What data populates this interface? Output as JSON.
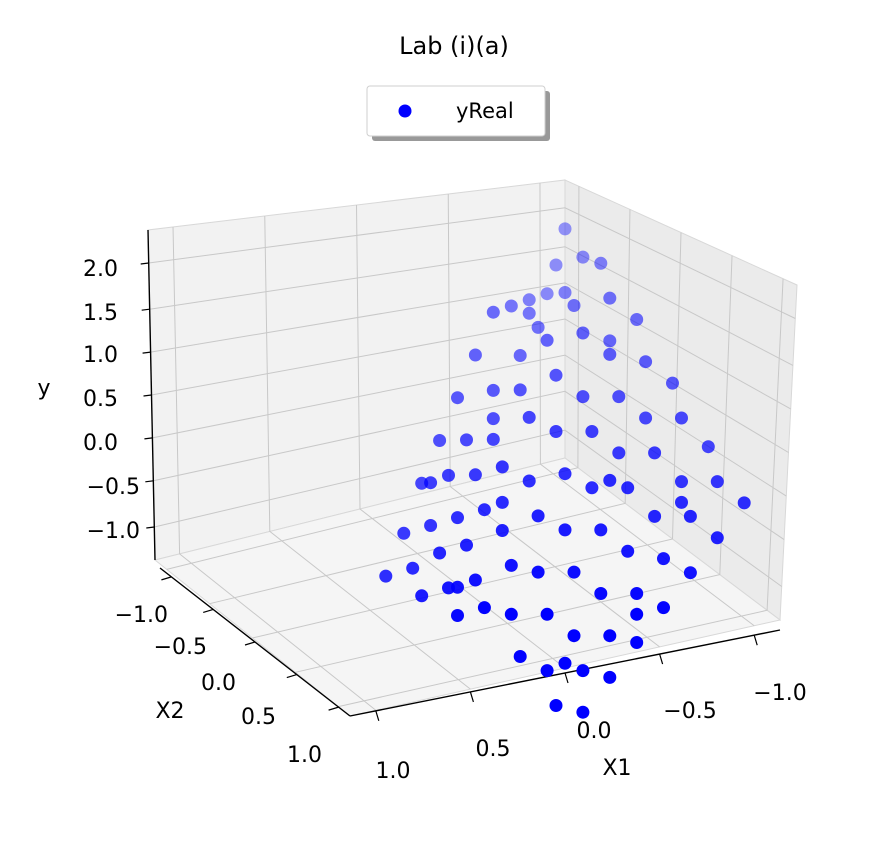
{
  "chart_data": {
    "type": "scatter",
    "title": "Lab (i)(a)",
    "xlabel": "X1",
    "ylabel": "X2",
    "zlabel": "y",
    "legend": {
      "placement": "top-center",
      "entries": [
        "yReal"
      ]
    },
    "x_ticks": [
      "1.0",
      "0.5",
      "0.0",
      "−0.5",
      "−1.0"
    ],
    "y_ticks": [
      "−1.0",
      "−0.5",
      "0.0",
      "0.5",
      "1.0"
    ],
    "z_ticks": [
      "2.0",
      "1.5",
      "1.0",
      "0.5",
      "0.0",
      "−0.5",
      "−1.0"
    ],
    "xlim": [
      -1.2,
      1.2
    ],
    "ylim": [
      -1.2,
      1.2
    ],
    "zlim": [
      -1.5,
      2.3
    ],
    "grid": true,
    "view": {
      "elev": 20,
      "azim": 60
    },
    "series": [
      {
        "name": "yReal",
        "color": "#0000ff",
        "points": [
          {
            "x": -1.0,
            "y": -1.0,
            "z": 2.0
          },
          {
            "x": -0.9,
            "y": -1.0,
            "z": 1.6
          },
          {
            "x": -0.8,
            "y": -1.0,
            "z": 1.3
          },
          {
            "x": -0.6,
            "y": -1.0,
            "z": 1.4
          },
          {
            "x": -0.4,
            "y": -1.0,
            "z": 1.5
          },
          {
            "x": -0.2,
            "y": -1.0,
            "z": 1.6
          },
          {
            "x": 0.0,
            "y": -1.0,
            "z": 1.2
          },
          {
            "x": 0.2,
            "y": -1.0,
            "z": 0.8
          },
          {
            "x": 0.4,
            "y": -1.0,
            "z": 0.4
          },
          {
            "x": 0.6,
            "y": -1.0,
            "z": 0.0
          },
          {
            "x": 0.8,
            "y": -1.0,
            "z": -0.5
          },
          {
            "x": 1.0,
            "y": -1.0,
            "z": -0.9
          },
          {
            "x": -1.0,
            "y": -0.8,
            "z": 1.8
          },
          {
            "x": -0.8,
            "y": -0.8,
            "z": 1.5
          },
          {
            "x": -0.5,
            "y": -0.8,
            "z": 1.3
          },
          {
            "x": -0.3,
            "y": -0.8,
            "z": 1.1
          },
          {
            "x": 0.0,
            "y": -0.8,
            "z": 0.9
          },
          {
            "x": 0.3,
            "y": -0.8,
            "z": 0.5
          },
          {
            "x": 0.5,
            "y": -0.8,
            "z": 0.2
          },
          {
            "x": 0.7,
            "y": -0.8,
            "z": -0.3
          },
          {
            "x": 0.9,
            "y": -0.8,
            "z": -0.7
          },
          {
            "x": -1.0,
            "y": -0.6,
            "z": 1.9
          },
          {
            "x": -0.7,
            "y": -0.6,
            "z": 1.6
          },
          {
            "x": -0.4,
            "y": -0.6,
            "z": 1.4
          },
          {
            "x": -0.1,
            "y": -0.6,
            "z": 1.0
          },
          {
            "x": 0.2,
            "y": -0.6,
            "z": 0.6
          },
          {
            "x": 0.4,
            "y": -0.6,
            "z": 0.3
          },
          {
            "x": 0.6,
            "y": -0.6,
            "z": -0.1
          },
          {
            "x": 0.8,
            "y": -0.6,
            "z": -0.4
          },
          {
            "x": 1.0,
            "y": -0.6,
            "z": -0.8
          },
          {
            "x": -0.9,
            "y": -0.4,
            "z": 1.7
          },
          {
            "x": -0.6,
            "y": -0.4,
            "z": 1.5
          },
          {
            "x": -0.3,
            "y": -0.4,
            "z": 1.2
          },
          {
            "x": 0.0,
            "y": -0.4,
            "z": 0.9
          },
          {
            "x": 0.3,
            "y": -0.4,
            "z": 0.5
          },
          {
            "x": 0.5,
            "y": -0.4,
            "z": 0.1
          },
          {
            "x": 0.7,
            "y": -0.4,
            "z": -0.2
          },
          {
            "x": 0.9,
            "y": -0.4,
            "z": -0.6
          },
          {
            "x": -1.0,
            "y": -0.2,
            "z": 1.5
          },
          {
            "x": -0.7,
            "y": -0.2,
            "z": 1.3
          },
          {
            "x": -0.4,
            "y": -0.2,
            "z": 1.0
          },
          {
            "x": -0.1,
            "y": -0.2,
            "z": 0.8
          },
          {
            "x": 0.2,
            "y": -0.2,
            "z": 0.4
          },
          {
            "x": 0.5,
            "y": -0.2,
            "z": 0.0
          },
          {
            "x": 0.8,
            "y": -0.2,
            "z": -0.4
          },
          {
            "x": 1.0,
            "y": -0.2,
            "z": -0.7
          },
          {
            "x": -0.9,
            "y": 0.0,
            "z": 1.2
          },
          {
            "x": -0.6,
            "y": 0.0,
            "z": 1.0
          },
          {
            "x": -0.3,
            "y": 0.0,
            "z": 0.8
          },
          {
            "x": 0.0,
            "y": 0.0,
            "z": 0.5
          },
          {
            "x": 0.3,
            "y": 0.0,
            "z": 0.2
          },
          {
            "x": 0.6,
            "y": 0.0,
            "z": -0.2
          },
          {
            "x": 0.9,
            "y": 0.0,
            "z": -0.5
          },
          {
            "x": -1.0,
            "y": 0.2,
            "z": 1.0
          },
          {
            "x": -0.7,
            "y": 0.2,
            "z": 0.8
          },
          {
            "x": -0.4,
            "y": 0.2,
            "z": 0.6
          },
          {
            "x": -0.1,
            "y": 0.2,
            "z": 0.4
          },
          {
            "x": 0.2,
            "y": 0.2,
            "z": 0.1
          },
          {
            "x": 0.5,
            "y": 0.2,
            "z": -0.2
          },
          {
            "x": 0.8,
            "y": 0.2,
            "z": -0.5
          },
          {
            "x": -0.9,
            "y": 0.4,
            "z": 0.8
          },
          {
            "x": -0.6,
            "y": 0.4,
            "z": 0.6
          },
          {
            "x": -0.3,
            "y": 0.4,
            "z": 0.4
          },
          {
            "x": 0.0,
            "y": 0.4,
            "z": 0.1
          },
          {
            "x": 0.3,
            "y": 0.4,
            "z": -0.2
          },
          {
            "x": 0.6,
            "y": 0.4,
            "z": -0.5
          },
          {
            "x": 0.9,
            "y": 0.4,
            "z": -0.8
          },
          {
            "x": -1.0,
            "y": 0.6,
            "z": 0.5
          },
          {
            "x": -0.7,
            "y": 0.6,
            "z": 0.3
          },
          {
            "x": -0.4,
            "y": 0.6,
            "z": 0.1
          },
          {
            "x": -0.1,
            "y": 0.6,
            "z": -0.1
          },
          {
            "x": 0.2,
            "y": 0.6,
            "z": -0.4
          },
          {
            "x": 0.5,
            "y": 0.6,
            "z": -0.7
          },
          {
            "x": 0.8,
            "y": 0.6,
            "z": -0.9
          },
          {
            "x": -0.9,
            "y": 0.8,
            "z": 0.3
          },
          {
            "x": -0.6,
            "y": 0.8,
            "z": 0.1
          },
          {
            "x": -0.3,
            "y": 0.8,
            "z": -0.2
          },
          {
            "x": 0.0,
            "y": 0.8,
            "z": -0.4
          },
          {
            "x": 0.3,
            "y": 0.8,
            "z": -0.7
          },
          {
            "x": 0.6,
            "y": 0.8,
            "z": -0.9
          },
          {
            "x": 0.9,
            "y": 0.8,
            "z": -1.1
          },
          {
            "x": -1.0,
            "y": 1.0,
            "z": 0.1
          },
          {
            "x": -0.7,
            "y": 1.0,
            "z": -0.1
          },
          {
            "x": -0.4,
            "y": 1.0,
            "z": -0.3
          },
          {
            "x": -0.1,
            "y": 1.0,
            "z": -0.5
          },
          {
            "x": 0.2,
            "y": 1.0,
            "z": -0.7
          },
          {
            "x": 0.5,
            "y": 1.0,
            "z": -0.9
          },
          {
            "x": 0.8,
            "y": 1.0,
            "z": -1.1
          },
          {
            "x": -0.5,
            "y": -0.9,
            "z": 1.4
          },
          {
            "x": 0.1,
            "y": -0.7,
            "z": 0.7
          },
          {
            "x": 0.4,
            "y": -0.3,
            "z": 0.2
          },
          {
            "x": -0.2,
            "y": 0.3,
            "z": 0.5
          },
          {
            "x": 0.7,
            "y": 0.7,
            "z": -0.8
          },
          {
            "x": -0.8,
            "y": -0.3,
            "z": 1.3
          },
          {
            "x": 0.1,
            "y": 0.9,
            "z": -0.5
          },
          {
            "x": -0.6,
            "y": 0.7,
            "z": 0.2
          },
          {
            "x": 0.6,
            "y": -0.9,
            "z": 0.1
          },
          {
            "x": 0.9,
            "y": -0.3,
            "z": -0.5
          }
        ]
      }
    ]
  }
}
